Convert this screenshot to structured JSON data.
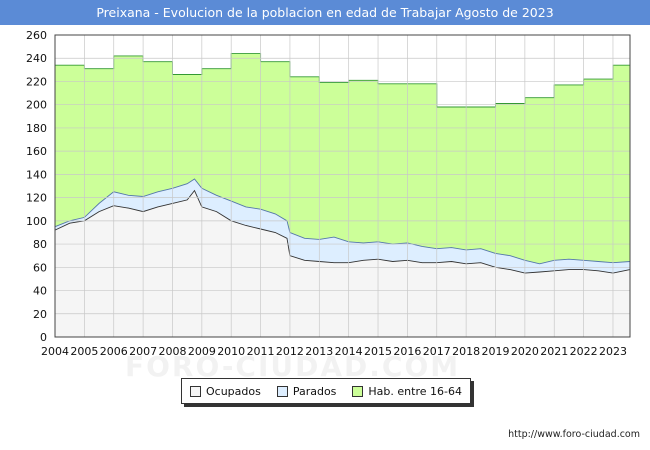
{
  "chart_data": {
    "type": "area",
    "title": "Preixana - Evolucion de la poblacion en edad de Trabajar Agosto de 2023",
    "ylim": [
      0,
      260
    ],
    "yticks": [
      0,
      20,
      40,
      60,
      80,
      100,
      120,
      140,
      160,
      180,
      200,
      220,
      240,
      260
    ],
    "xlim": [
      2004,
      2023.58
    ],
    "xticks": [
      "2004",
      "2005",
      "2006",
      "2007",
      "2008",
      "2009",
      "2010",
      "2011",
      "2012",
      "2013",
      "2014",
      "2015",
      "2016",
      "2017",
      "2018",
      "2019",
      "2020",
      "2021",
      "2022",
      "2023"
    ],
    "grid": true,
    "series": [
      {
        "name": "Hab. entre 16-64",
        "step": true,
        "color": "#ccff99",
        "line_color": "#339933",
        "x": [
          2004,
          2005,
          2006,
          2007,
          2008,
          2009,
          2010,
          2011,
          2012,
          2013,
          2014,
          2015,
          2016,
          2017,
          2018,
          2019,
          2020,
          2021,
          2022,
          2023
        ],
        "values": [
          234,
          231,
          242,
          237,
          226,
          231,
          244,
          237,
          224,
          219,
          221,
          218,
          218,
          198,
          198,
          201,
          206,
          217,
          222,
          234
        ]
      },
      {
        "name": "Parados",
        "color": "#ddeeff",
        "line_color": "#5577aa",
        "x": [
          2004,
          2004.5,
          2005,
          2005.5,
          2006,
          2006.5,
          2007,
          2007.5,
          2008,
          2008.5,
          2008.75,
          2009,
          2009.5,
          2010,
          2010.5,
          2011,
          2011.5,
          2011.9,
          2012,
          2012.5,
          2013,
          2013.5,
          2014,
          2014.5,
          2015,
          2015.5,
          2016,
          2016.5,
          2017,
          2017.5,
          2018,
          2018.5,
          2019,
          2019.5,
          2020,
          2020.5,
          2021,
          2021.5,
          2022,
          2022.5,
          2023,
          2023.58
        ],
        "values": [
          95,
          100,
          103,
          115,
          125,
          122,
          121,
          125,
          128,
          132,
          136,
          128,
          122,
          117,
          112,
          110,
          106,
          100,
          90,
          85,
          84,
          86,
          82,
          81,
          82,
          80,
          81,
          78,
          76,
          77,
          75,
          76,
          72,
          70,
          66,
          63,
          66,
          67,
          66,
          65,
          64,
          65
        ]
      },
      {
        "name": "Ocupados",
        "color": "#f5f5f5",
        "line_color": "#333333",
        "x": [
          2004,
          2004.5,
          2005,
          2005.5,
          2006,
          2006.5,
          2007,
          2007.5,
          2008,
          2008.5,
          2008.75,
          2009,
          2009.5,
          2010,
          2010.5,
          2011,
          2011.5,
          2011.9,
          2012,
          2012.5,
          2013,
          2013.5,
          2014,
          2014.5,
          2015,
          2015.5,
          2016,
          2016.5,
          2017,
          2017.5,
          2018,
          2018.5,
          2019,
          2019.5,
          2020,
          2020.5,
          2021,
          2021.5,
          2022,
          2022.5,
          2023,
          2023.58
        ],
        "values": [
          92,
          98,
          100,
          108,
          113,
          111,
          108,
          112,
          115,
          118,
          126,
          112,
          108,
          100,
          96,
          93,
          90,
          85,
          70,
          66,
          65,
          64,
          64,
          66,
          67,
          65,
          66,
          64,
          64,
          65,
          63,
          64,
          60,
          58,
          55,
          56,
          57,
          58,
          58,
          57,
          55,
          58
        ]
      }
    ],
    "legend": [
      "Ocupados",
      "Parados",
      "Hab. entre 16-64"
    ],
    "legend_position": "bottom-center",
    "source": "http://www.foro-ciudad.com",
    "watermark": "FORO-CIUDAD.COM"
  }
}
